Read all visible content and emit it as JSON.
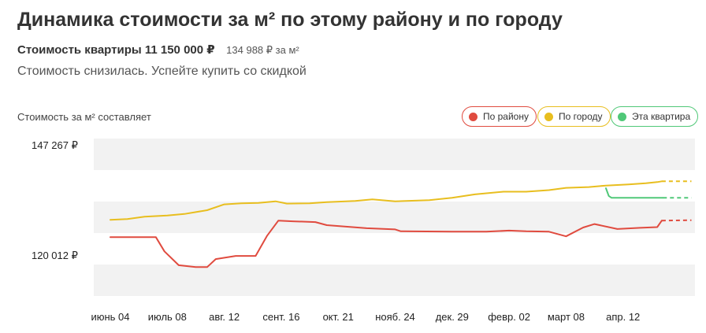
{
  "header": {
    "title": "Динамика стоимости за м² по этому району и по городу",
    "apartment_price": "Стоимость квартиры 11 150 000 ₽",
    "price_per_sqm": "134 988 ₽ за м²",
    "note": "Стоимость снизилась. Успейте купить со скидкой"
  },
  "chart": {
    "caption": "Стоимость за м² составляет",
    "legend": [
      {
        "label": "По району",
        "color": "#e04b3f"
      },
      {
        "label": "По городу",
        "color": "#e8be1f"
      },
      {
        "label": "Эта квартира",
        "color": "#50c878"
      }
    ],
    "y_ticks": [
      "147 267 ₽",
      "120 012 ₽"
    ]
  },
  "chart_data": {
    "type": "line",
    "x_tick_labels": [
      "июнь 04",
      "июль 08",
      "авг. 12",
      "сент. 16",
      "окт. 21",
      "нояб. 24",
      "дек. 29",
      "февр. 02",
      "март 08",
      "апр. 12"
    ],
    "ylim": [
      113200,
      154100
    ],
    "y_ticks": [
      147267,
      120012
    ],
    "grid": "alternating bands",
    "legend_position": "top-right",
    "series": [
      {
        "name": "По району",
        "color": "#e04b3f",
        "x": [
          0,
          0.5,
          0.8,
          0.95,
          1.2,
          1.5,
          1.7,
          1.85,
          2.2,
          2.55,
          2.75,
          2.95,
          3.2,
          3.6,
          3.8,
          4.5,
          5.0,
          5.1,
          6.0,
          6.6,
          7.0,
          7.3,
          7.7,
          8.0,
          8.3,
          8.5,
          8.9,
          9.3,
          9.6,
          9.68,
          10.2
        ],
        "y": [
          128500,
          128500,
          128500,
          124800,
          121200,
          120700,
          120700,
          122800,
          123600,
          123600,
          128800,
          132800,
          132600,
          132400,
          131600,
          130800,
          130500,
          130000,
          129900,
          129900,
          130200,
          130000,
          129900,
          128700,
          131000,
          131900,
          130600,
          130900,
          131100,
          132800,
          132900
        ],
        "dashed_from_x": 9.7
      },
      {
        "name": "По городу",
        "color": "#e8be1f",
        "x": [
          0,
          0.3,
          0.6,
          1.0,
          1.3,
          1.7,
          2.0,
          2.3,
          2.6,
          2.9,
          3.1,
          3.5,
          3.8,
          4.3,
          4.6,
          5.0,
          5.6,
          6.0,
          6.4,
          6.9,
          7.3,
          7.7,
          8.0,
          8.4,
          8.7,
          9.1,
          9.4,
          9.6,
          9.68,
          10.2
        ],
        "y": [
          133000,
          133200,
          133800,
          134100,
          134500,
          135500,
          137000,
          137300,
          137400,
          137800,
          137200,
          137300,
          137600,
          137900,
          138300,
          137800,
          138100,
          138700,
          139600,
          140300,
          140300,
          140700,
          141300,
          141500,
          141900,
          142200,
          142500,
          142800,
          143000,
          143000
        ],
        "dashed_from_x": 9.7
      },
      {
        "name": "Эта квартира",
        "color": "#50c878",
        "x": [
          8.7,
          8.75,
          8.8,
          9.7,
          10.2
        ],
        "y": [
          141200,
          139200,
          138700,
          138700,
          138700
        ],
        "dashed_from_x": 9.7
      }
    ]
  }
}
